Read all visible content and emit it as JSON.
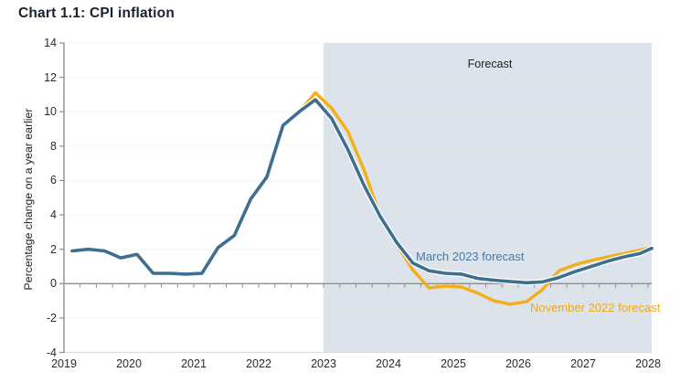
{
  "title": "Chart 1.1: CPI inflation",
  "chart_data": {
    "type": "line",
    "title": "Chart 1.1: CPI inflation",
    "xlabel": "",
    "ylabel": "Percentage change on a year earlier",
    "ylim": [
      -4,
      14
    ],
    "y_ticks": [
      14,
      12,
      10,
      8,
      6,
      4,
      2,
      0,
      -2,
      -4
    ],
    "x_tick_labels": [
      "2019",
      "2020",
      "2021",
      "2022",
      "2023",
      "2024",
      "2025",
      "2026",
      "2027",
      "2028"
    ],
    "grid": "faint dotted horizontal gridlines at even values",
    "legend_position": "inline labels next to lines",
    "frequency": "quarterly",
    "forecast_shading": {
      "label": "Forecast",
      "from_year": 2023,
      "to_year": 2028.1,
      "color": "#dce3eb"
    },
    "axis_color": "#8f8f8f",
    "series": [
      {
        "name": "March 2023 forecast",
        "color": "#3e6e90",
        "label_color": "#4a7aa1",
        "start_year": 2019,
        "start_quarter": 1,
        "values": [
          1.9,
          2.0,
          1.9,
          1.5,
          1.7,
          0.6,
          0.6,
          0.55,
          0.6,
          2.1,
          2.8,
          4.9,
          6.2,
          9.2,
          10.0,
          10.7,
          9.6,
          7.8,
          5.7,
          3.9,
          2.4,
          1.2,
          0.75,
          0.6,
          0.55,
          0.3,
          0.2,
          0.12,
          0.05,
          0.1,
          0.35,
          0.7,
          1.0,
          1.3,
          1.55,
          1.75,
          2.05
        ]
      },
      {
        "name": "November 2022 forecast",
        "color": "#f6ae16",
        "label_color": "#f0aa10",
        "start_year": 2022,
        "start_quarter": 3,
        "values": [
          10.0,
          11.1,
          10.2,
          8.85,
          6.6,
          3.9,
          2.3,
          0.8,
          -0.25,
          -0.15,
          -0.2,
          -0.55,
          -1.0,
          -1.2,
          -1.05,
          -0.35,
          0.75,
          1.1,
          1.35,
          1.55,
          1.75,
          1.95,
          2.1
        ]
      }
    ]
  }
}
